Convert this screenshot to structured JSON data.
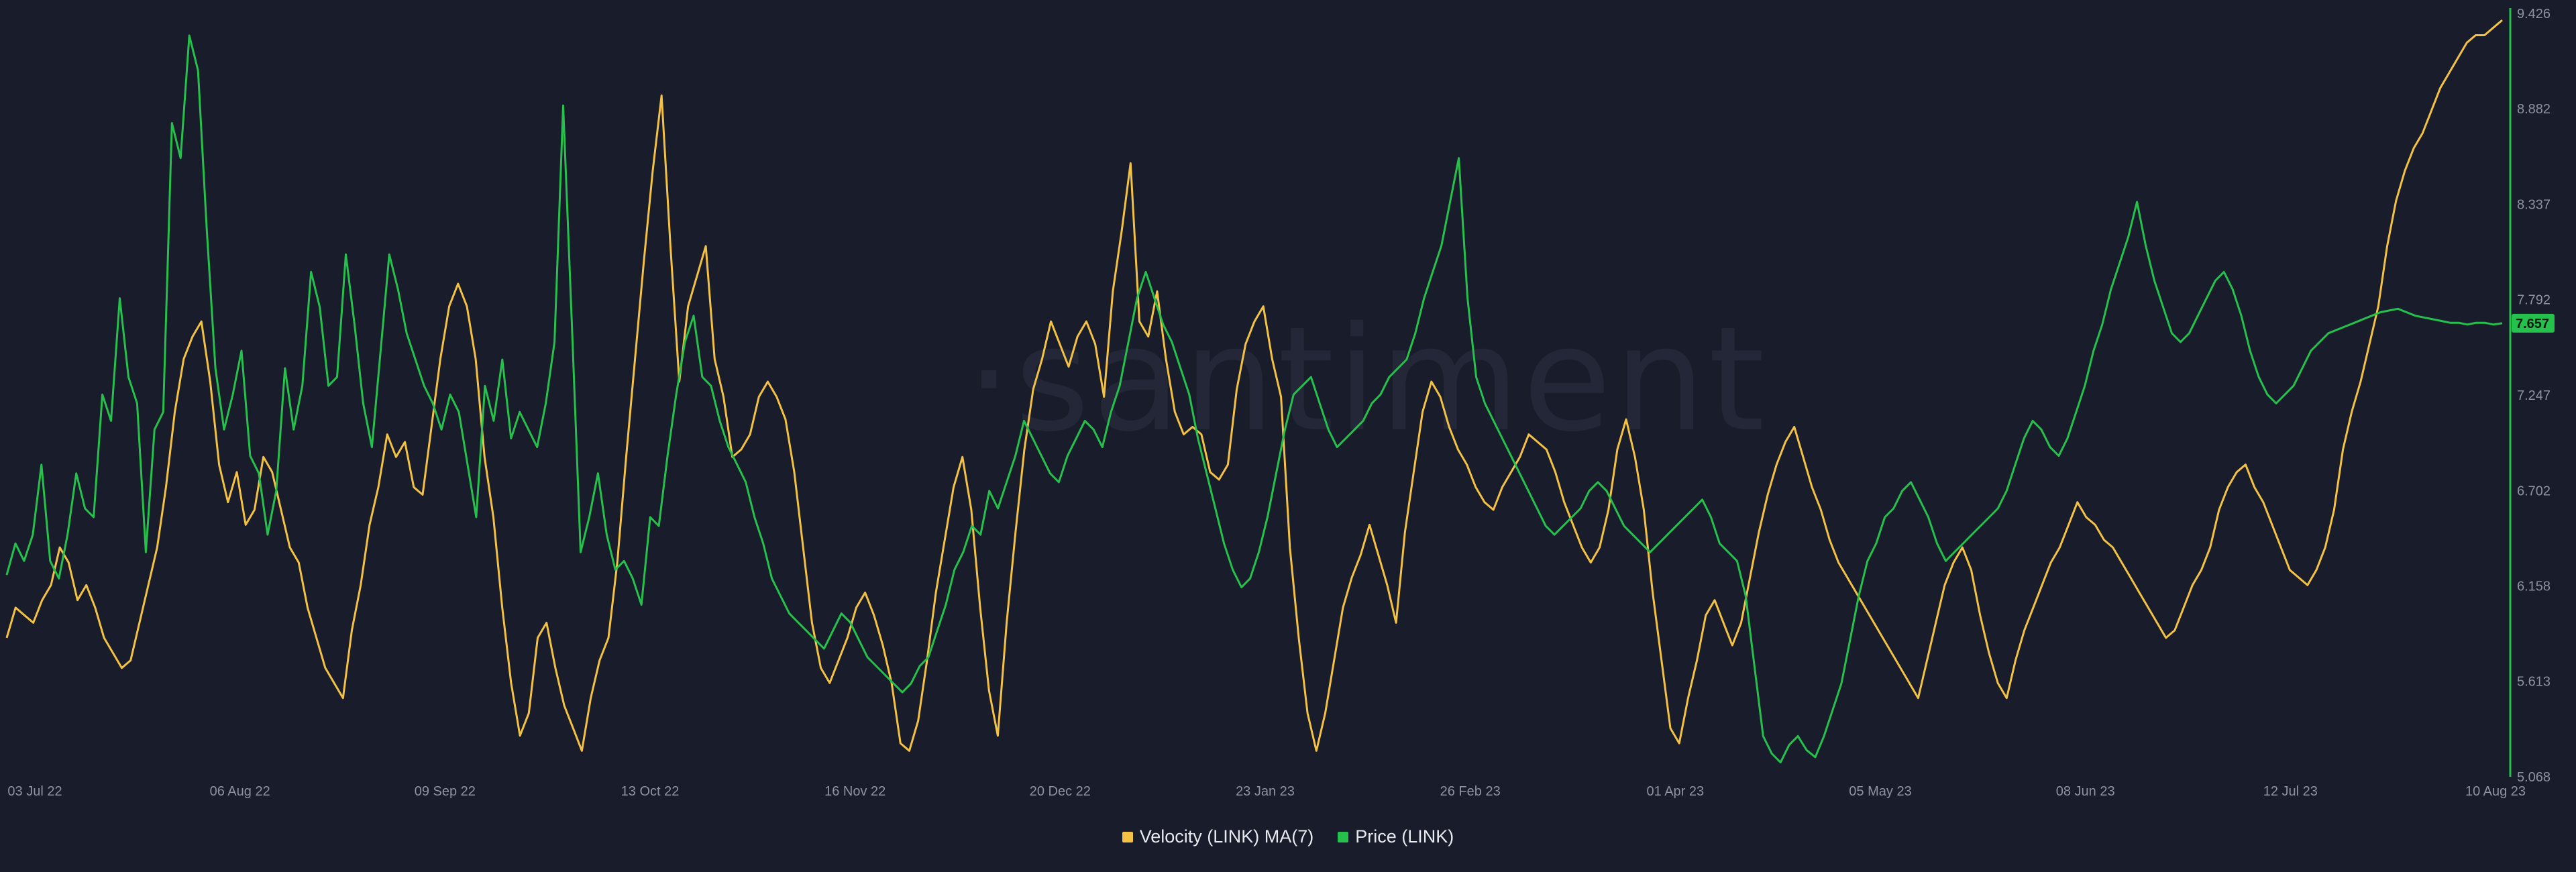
{
  "watermark": "·santiment",
  "colors": {
    "background": "#191c2a",
    "velocity": "#f3c244",
    "price": "#26c14c"
  },
  "chart_data": {
    "type": "line",
    "title": "",
    "xlabel": "",
    "ylabel": "",
    "x_tick_labels": [
      "03 Jul 22",
      "06 Aug 22",
      "09 Sep 22",
      "13 Oct 22",
      "16 Nov 22",
      "20 Dec 22",
      "23 Jan 23",
      "26 Feb 23",
      "01 Apr 23",
      "05 May 23",
      "08 Jun 23",
      "12 Jul 23",
      "10 Aug 23"
    ],
    "right_axis": {
      "series": "Price (LINK)",
      "ticks": [
        5.068,
        5.613,
        6.158,
        6.702,
        7.247,
        7.792,
        8.337,
        8.882,
        9.426
      ],
      "range": [
        5.068,
        9.426
      ],
      "last_value": "7.657"
    },
    "legend_position": "bottom-center",
    "grid": false,
    "series": [
      {
        "name": "Velocity (LINK) MA(7)",
        "color": "#f3c244",
        "axis": "hidden",
        "values": [
          0.18,
          0.22,
          0.21,
          0.2,
          0.23,
          0.25,
          0.3,
          0.28,
          0.23,
          0.25,
          0.22,
          0.18,
          0.16,
          0.14,
          0.15,
          0.2,
          0.25,
          0.3,
          0.38,
          0.48,
          0.55,
          0.58,
          0.6,
          0.52,
          0.41,
          0.36,
          0.4,
          0.33,
          0.35,
          0.42,
          0.4,
          0.35,
          0.3,
          0.28,
          0.22,
          0.18,
          0.14,
          0.12,
          0.1,
          0.19,
          0.25,
          0.33,
          0.38,
          0.45,
          0.42,
          0.44,
          0.38,
          0.37,
          0.46,
          0.55,
          0.62,
          0.65,
          0.62,
          0.55,
          0.42,
          0.34,
          0.22,
          0.12,
          0.05,
          0.08,
          0.18,
          0.2,
          0.14,
          0.09,
          0.06,
          0.03,
          0.1,
          0.15,
          0.18,
          0.28,
          0.42,
          0.55,
          0.68,
          0.8,
          0.9,
          0.7,
          0.52,
          0.62,
          0.66,
          0.7,
          0.55,
          0.5,
          0.42,
          0.43,
          0.45,
          0.5,
          0.52,
          0.5,
          0.47,
          0.4,
          0.3,
          0.2,
          0.14,
          0.12,
          0.15,
          0.18,
          0.22,
          0.24,
          0.21,
          0.17,
          0.12,
          0.04,
          0.03,
          0.07,
          0.15,
          0.24,
          0.31,
          0.38,
          0.42,
          0.35,
          0.22,
          0.11,
          0.05,
          0.2,
          0.32,
          0.43,
          0.51,
          0.55,
          0.6,
          0.57,
          0.54,
          0.58,
          0.6,
          0.57,
          0.5,
          0.64,
          0.72,
          0.81,
          0.6,
          0.58,
          0.64,
          0.55,
          0.48,
          0.45,
          0.46,
          0.45,
          0.4,
          0.39,
          0.41,
          0.51,
          0.57,
          0.6,
          0.62,
          0.55,
          0.5,
          0.3,
          0.18,
          0.08,
          0.03,
          0.08,
          0.15,
          0.22,
          0.26,
          0.29,
          0.33,
          0.29,
          0.25,
          0.2,
          0.32,
          0.4,
          0.48,
          0.52,
          0.5,
          0.46,
          0.43,
          0.41,
          0.38,
          0.36,
          0.35,
          0.38,
          0.4,
          0.42,
          0.45,
          0.44,
          0.43,
          0.4,
          0.36,
          0.33,
          0.3,
          0.28,
          0.3,
          0.35,
          0.43,
          0.47,
          0.42,
          0.35,
          0.24,
          0.15,
          0.06,
          0.04,
          0.1,
          0.15,
          0.21,
          0.23,
          0.2,
          0.17,
          0.2,
          0.26,
          0.32,
          0.37,
          0.41,
          0.44,
          0.46,
          0.42,
          0.38,
          0.35,
          0.31,
          0.28,
          0.26,
          0.24,
          0.22,
          0.2,
          0.18,
          0.16,
          0.14,
          0.12,
          0.1,
          0.15,
          0.2,
          0.25,
          0.28,
          0.3,
          0.27,
          0.21,
          0.16,
          0.12,
          0.1,
          0.15,
          0.19,
          0.22,
          0.25,
          0.28,
          0.3,
          0.33,
          0.36,
          0.34,
          0.33,
          0.31,
          0.3,
          0.28,
          0.26,
          0.24,
          0.22,
          0.2,
          0.18,
          0.19,
          0.22,
          0.25,
          0.27,
          0.3,
          0.35,
          0.38,
          0.4,
          0.41,
          0.38,
          0.36,
          0.33,
          0.3,
          0.27,
          0.26,
          0.25,
          0.27,
          0.3,
          0.35,
          0.43,
          0.48,
          0.52,
          0.57,
          0.62,
          0.7,
          0.76,
          0.8,
          0.83,
          0.85,
          0.88,
          0.91,
          0.93,
          0.95,
          0.97,
          0.98,
          0.98,
          0.99,
          1.0
        ],
        "note": ""
      },
      {
        "name": "Price (LINK)",
        "color": "#26c14c",
        "axis": "right",
        "values": [
          6.22,
          6.4,
          6.3,
          6.45,
          6.85,
          6.3,
          6.2,
          6.45,
          6.8,
          6.6,
          6.55,
          7.25,
          7.1,
          7.8,
          7.35,
          7.2,
          6.35,
          7.05,
          7.15,
          8.8,
          8.6,
          9.3,
          9.1,
          8.2,
          7.4,
          7.05,
          7.25,
          7.5,
          6.9,
          6.8,
          6.45,
          6.7,
          7.4,
          7.05,
          7.3,
          7.95,
          7.75,
          7.3,
          7.35,
          8.05,
          7.65,
          7.2,
          6.95,
          7.5,
          8.05,
          7.85,
          7.6,
          7.45,
          7.3,
          7.2,
          7.05,
          7.25,
          7.15,
          6.85,
          6.55,
          7.3,
          7.1,
          7.45,
          7.0,
          7.15,
          7.05,
          6.95,
          7.2,
          7.55,
          8.9,
          7.65,
          6.35,
          6.55,
          6.8,
          6.45,
          6.25,
          6.3,
          6.2,
          6.05,
          6.55,
          6.5,
          6.9,
          7.25,
          7.55,
          7.7,
          7.35,
          7.3,
          7.1,
          6.95,
          6.85,
          6.75,
          6.55,
          6.4,
          6.2,
          6.1,
          6.0,
          5.95,
          5.9,
          5.85,
          5.8,
          5.9,
          6.0,
          5.95,
          5.85,
          5.75,
          5.7,
          5.65,
          5.6,
          5.55,
          5.6,
          5.7,
          5.75,
          5.9,
          6.05,
          6.25,
          6.35,
          6.5,
          6.45,
          6.7,
          6.6,
          6.75,
          6.9,
          7.1,
          7.0,
          6.9,
          6.8,
          6.75,
          6.9,
          7.0,
          7.1,
          7.05,
          6.95,
          7.15,
          7.3,
          7.55,
          7.8,
          7.95,
          7.8,
          7.65,
          7.55,
          7.4,
          7.25,
          7.0,
          6.8,
          6.6,
          6.4,
          6.25,
          6.15,
          6.2,
          6.35,
          6.55,
          6.8,
          7.05,
          7.25,
          7.3,
          7.35,
          7.2,
          7.05,
          6.95,
          7.0,
          7.05,
          7.1,
          7.2,
          7.25,
          7.35,
          7.4,
          7.45,
          7.6,
          7.8,
          7.95,
          8.1,
          8.35,
          8.6,
          7.8,
          7.35,
          7.2,
          7.1,
          7.0,
          6.9,
          6.8,
          6.7,
          6.6,
          6.5,
          6.45,
          6.5,
          6.55,
          6.6,
          6.7,
          6.75,
          6.7,
          6.6,
          6.5,
          6.45,
          6.4,
          6.35,
          6.4,
          6.45,
          6.5,
          6.55,
          6.6,
          6.65,
          6.55,
          6.4,
          6.35,
          6.3,
          6.1,
          5.7,
          5.3,
          5.2,
          5.15,
          5.25,
          5.3,
          5.22,
          5.18,
          5.3,
          5.45,
          5.6,
          5.85,
          6.1,
          6.3,
          6.4,
          6.55,
          6.6,
          6.7,
          6.75,
          6.65,
          6.55,
          6.4,
          6.3,
          6.35,
          6.4,
          6.45,
          6.5,
          6.55,
          6.6,
          6.7,
          6.85,
          7.0,
          7.1,
          7.05,
          6.95,
          6.9,
          7.0,
          7.15,
          7.3,
          7.5,
          7.65,
          7.85,
          8.0,
          8.15,
          8.35,
          8.1,
          7.9,
          7.75,
          7.6,
          7.55,
          7.6,
          7.7,
          7.8,
          7.9,
          7.95,
          7.85,
          7.7,
          7.5,
          7.35,
          7.25,
          7.2,
          7.25,
          7.3,
          7.4,
          7.5,
          7.55,
          7.6,
          7.62,
          7.64,
          7.66,
          7.68,
          7.7,
          7.72,
          7.73,
          7.74,
          7.72,
          7.7,
          7.69,
          7.68,
          7.67,
          7.66,
          7.66,
          7.65,
          7.66,
          7.66,
          7.65,
          7.657
        ]
      }
    ]
  },
  "legend": [
    {
      "label": "Velocity (LINK) MA(7)",
      "color": "#f3c244"
    },
    {
      "label": "Price (LINK)",
      "color": "#26c14c"
    }
  ]
}
